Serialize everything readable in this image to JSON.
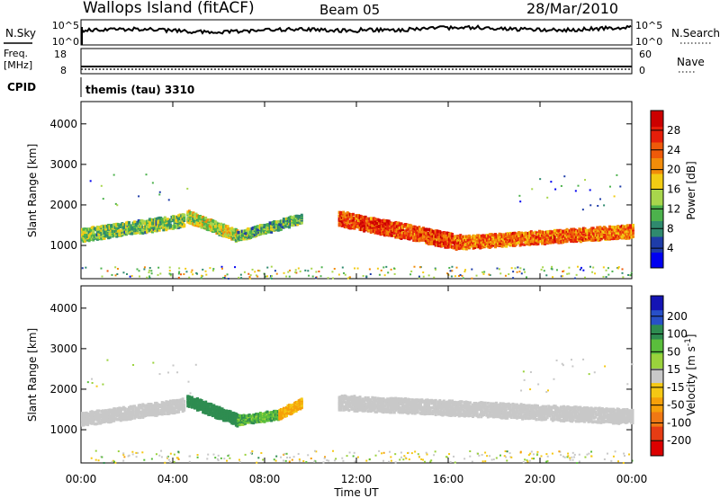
{
  "header": {
    "station": "Wallops Island (fitACF)",
    "beam": "Beam 05",
    "date": "28/Mar/2010"
  },
  "status": {
    "nsky_label": "N.Sky",
    "nsky_ticks": [
      "10^5",
      "10^0"
    ],
    "nsearch_label": "N.Search",
    "nsearch_ticks": [
      "10^5",
      "10^0"
    ],
    "freq_label_1": "Freq.",
    "freq_label_2": "[MHz]",
    "freq_ticks": [
      "18",
      "8"
    ],
    "nave_label": "Nave",
    "nave_ticks": [
      "60",
      "0"
    ],
    "cpid_label": "CPID",
    "cpid_value": "themis (tau) 3310"
  },
  "colors": {
    "power_scale": [
      "#0000f0",
      "#1e3ca8",
      "#2f8a6e",
      "#4cb24c",
      "#a8d64c",
      "#f2cc14",
      "#f28c0a",
      "#ee5a0a",
      "#e61e0a",
      "#cc0000"
    ],
    "velocity_scale": [
      "#1414b4",
      "#2850c8",
      "#2e8c50",
      "#5abe3c",
      "#9ad23c",
      "#c8c8c8",
      "#f5c814",
      "#f5a00a",
      "#f07814",
      "#e63c14",
      "#dc0000"
    ]
  },
  "chart_data": [
    {
      "type": "heatmap",
      "parameter": "power",
      "ylabel": "Slant Range [km]",
      "xlabel": "Time UT",
      "xlim": [
        "00:00",
        "24:00"
      ],
      "ylim": [
        180,
        4550
      ],
      "x_ticks": [
        "00:00",
        "04:00",
        "08:00",
        "12:00",
        "16:00",
        "20:00",
        "00:00"
      ],
      "y_ticks": [
        1000,
        2000,
        3000,
        4000
      ],
      "colorbar": {
        "label": "Power [dB]",
        "min": 0,
        "max": 32,
        "ticks": [
          4,
          8,
          12,
          16,
          20,
          24,
          28
        ]
      },
      "scatter_bands": [
        {
          "time_start": 0.0,
          "time_end": 4.5,
          "center_start_km": 1290,
          "center_end_km": 1650,
          "width_km": 280,
          "value": 12
        },
        {
          "time_start": 4.6,
          "time_end": 6.8,
          "center_start_km": 1750,
          "center_end_km": 1260,
          "width_km": 250,
          "value": 15
        },
        {
          "time_start": 6.8,
          "time_end": 9.6,
          "center_start_km": 1260,
          "center_end_km": 1700,
          "width_km": 200,
          "value": 11
        },
        {
          "time_start": 11.2,
          "time_end": 16.5,
          "center_start_km": 1700,
          "center_end_km": 1100,
          "width_km": 330,
          "value": 26
        },
        {
          "time_start": 16.5,
          "time_end": 24.0,
          "center_start_km": 1100,
          "center_end_km": 1380,
          "width_km": 280,
          "value": 24
        }
      ]
    },
    {
      "type": "heatmap",
      "parameter": "velocity",
      "ylabel": "Slant Range [km]",
      "xlabel": "Time UT",
      "xlim": [
        "00:00",
        "24:00"
      ],
      "ylim": [
        180,
        4550
      ],
      "x_ticks": [
        "00:00",
        "04:00",
        "08:00",
        "12:00",
        "16:00",
        "20:00",
        "00:00"
      ],
      "y_ticks": [
        1000,
        2000,
        3000,
        4000
      ],
      "colorbar": {
        "label": "Velocity [m s^-1]",
        "ticks": [
          "200",
          "100",
          "50",
          "15",
          "-15",
          "-50",
          "-100",
          "-200"
        ]
      },
      "scatter_bands": [
        {
          "time_start": 0.0,
          "time_end": 4.5,
          "center_start_km": 1290,
          "center_end_km": 1650,
          "width_km": 280,
          "value": 0
        },
        {
          "time_start": 4.6,
          "time_end": 6.8,
          "center_start_km": 1750,
          "center_end_km": 1260,
          "width_km": 250,
          "value": 60
        },
        {
          "time_start": 6.8,
          "time_end": 8.6,
          "center_start_km": 1260,
          "center_end_km": 1400,
          "width_km": 200,
          "value": 40
        },
        {
          "time_start": 8.6,
          "time_end": 9.6,
          "center_start_km": 1400,
          "center_end_km": 1700,
          "width_km": 200,
          "value": -40
        },
        {
          "time_start": 11.2,
          "time_end": 24.0,
          "center_start_km": 1700,
          "center_end_km": 1350,
          "width_km": 320,
          "value": 0
        }
      ]
    }
  ]
}
